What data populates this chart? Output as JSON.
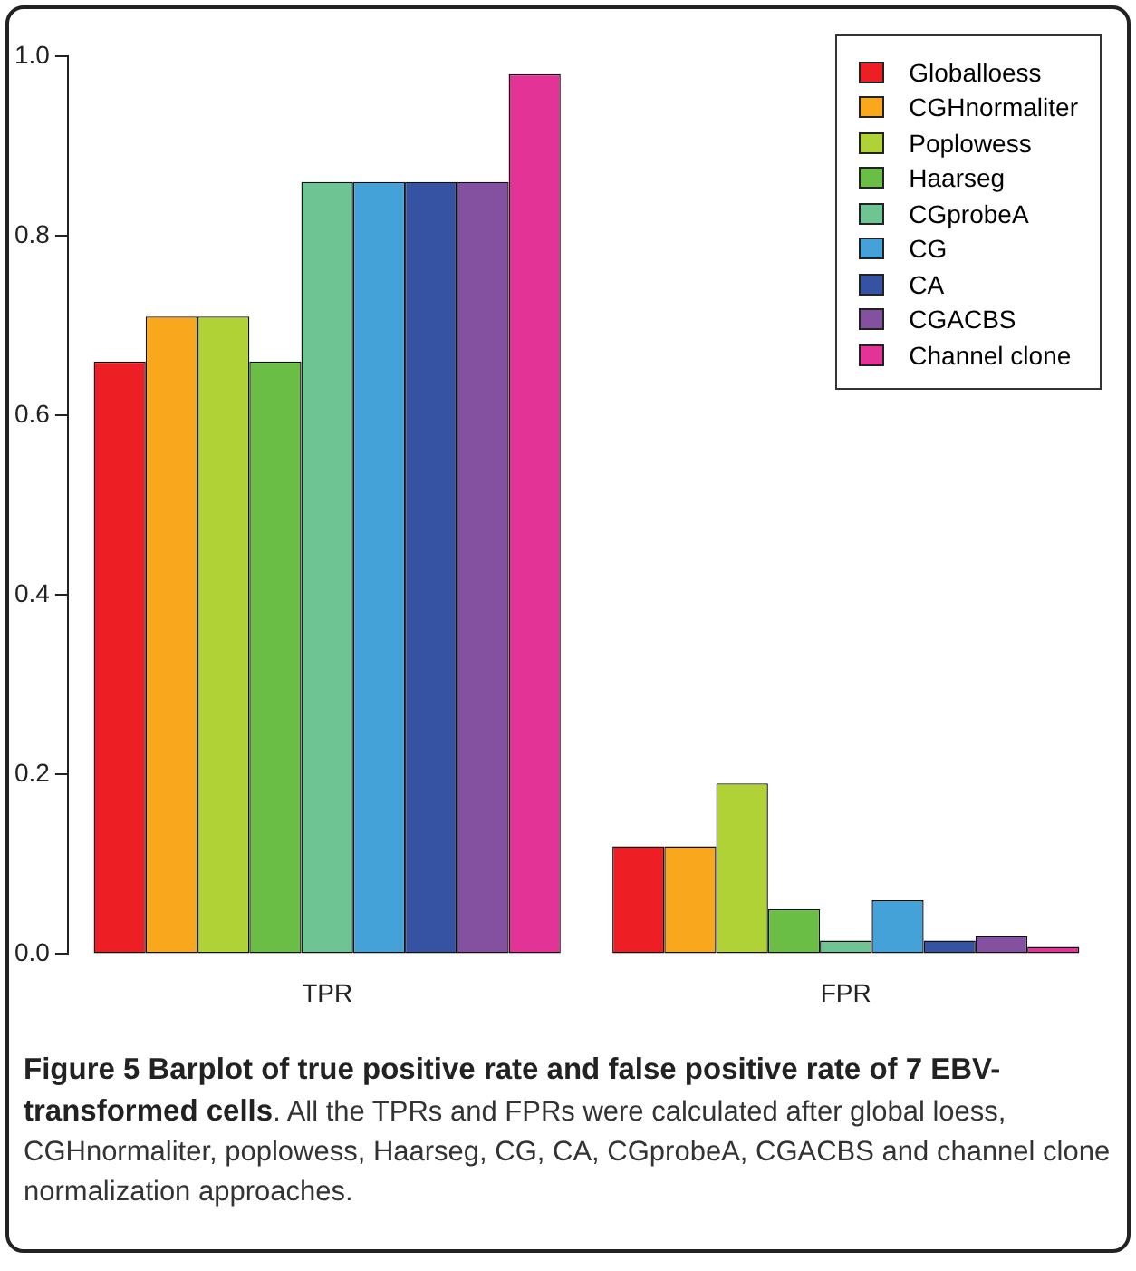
{
  "chart_data": {
    "type": "bar",
    "title": "Figure 5 Barplot of true positive rate and false positive rate of 7 EBV-transformed cells",
    "annotations": [
      ". All the TPRs and FPRs were calculated after global loess, CGHnormaliter, poplowess, Haarseg, CG, CA, CGprobeA, CGACBS and channel clone normalization approaches."
    ],
    "categories": [
      "TPR",
      "FPR"
    ],
    "series": [
      {
        "name": "Globalloess",
        "color": "#ed1f24",
        "values": [
          0.66,
          0.12
        ]
      },
      {
        "name": "CGHnormaliter",
        "color": "#f9a81e",
        "values": [
          0.71,
          0.12
        ]
      },
      {
        "name": "Poplowess",
        "color": "#b0d236",
        "values": [
          0.71,
          0.19
        ]
      },
      {
        "name": "Haarseg",
        "color": "#6abd45",
        "values": [
          0.66,
          0.05
        ]
      },
      {
        "name": "CGprobeA",
        "color": "#6fc494",
        "values": [
          0.86,
          0.015
        ]
      },
      {
        "name": "CG",
        "color": "#44a2d9",
        "values": [
          0.86,
          0.06
        ]
      },
      {
        "name": "CA",
        "color": "#3652a3",
        "values": [
          0.86,
          0.015
        ]
      },
      {
        "name": "CGACBS",
        "color": "#8451a1",
        "values": [
          0.86,
          0.02
        ]
      },
      {
        "name": "Channel clone",
        "color": "#e43397",
        "values": [
          0.98,
          0.008
        ]
      }
    ],
    "ylim": [
      0,
      1
    ],
    "yticks": [
      {
        "value": 0,
        "label": "0.0"
      },
      {
        "value": 0.2,
        "label": "0.2"
      },
      {
        "value": 0.4,
        "label": "0.4"
      },
      {
        "value": 0.6,
        "label": "0.6"
      },
      {
        "value": 0.8,
        "label": "0.8"
      },
      {
        "value": 1,
        "label": "1.0"
      }
    ],
    "grid": false,
    "legend": "top right"
  }
}
